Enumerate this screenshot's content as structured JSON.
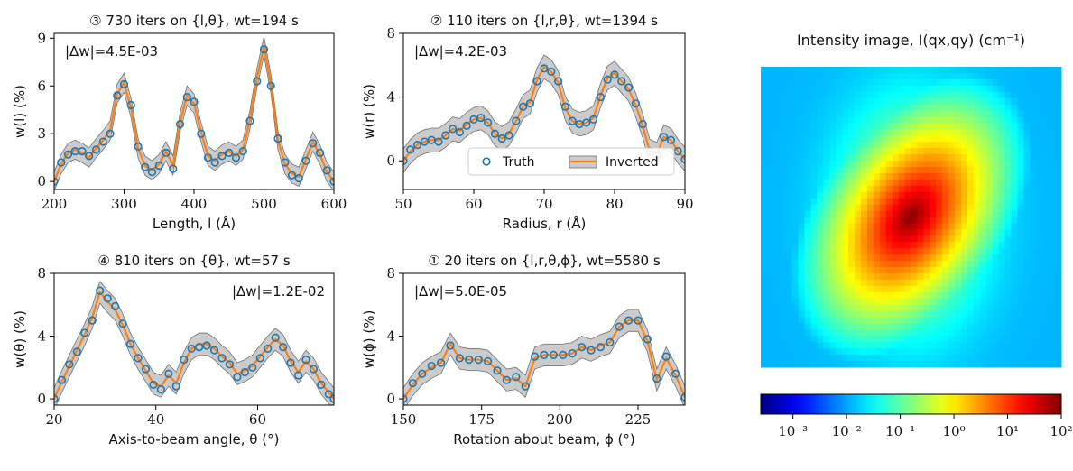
{
  "chart_data": [
    {
      "id": "length",
      "type": "line",
      "title": "③ 730 iters on {l,θ}, wt=194 s",
      "xlabel": "Length, l (Å)",
      "ylabel": "w(l) (%)",
      "xlim": [
        200,
        600
      ],
      "ylim": [
        -0.5,
        9.3
      ],
      "xticks": [
        200,
        300,
        400,
        500,
        600
      ],
      "yticks": [
        0,
        3,
        6,
        9
      ],
      "annotation": "|Δw|=4.5E-03",
      "annotation_pos": "top-left",
      "legend": null,
      "grid": false,
      "series": [
        {
          "name": "Truth",
          "style": "open-circle",
          "color": "#1f77b4",
          "x": [
            200,
            210,
            220,
            230,
            240,
            250,
            260,
            270,
            280,
            290,
            300,
            310,
            320,
            330,
            340,
            350,
            360,
            370,
            380,
            390,
            400,
            410,
            420,
            430,
            440,
            450,
            460,
            470,
            480,
            490,
            500,
            510,
            520,
            530,
            540,
            550,
            560,
            570,
            580,
            590,
            600
          ],
          "y": [
            0,
            1.2,
            1.7,
            1.9,
            1.9,
            1.6,
            2.0,
            2.5,
            3.0,
            5.4,
            6.1,
            4.8,
            2.2,
            0.9,
            0.6,
            1.0,
            1.8,
            0.8,
            3.6,
            5.3,
            5.0,
            3.0,
            1.5,
            1.2,
            1.6,
            1.8,
            1.5,
            1.9,
            3.8,
            6.3,
            8.3,
            6.0,
            2.7,
            1.2,
            0.4,
            0.2,
            1.3,
            2.4,
            1.8,
            0.7,
            0
          ]
        },
        {
          "name": "Inverted",
          "style": "line-band",
          "color": "#ff7f0e",
          "band_color": "#a0a0a0",
          "x": [
            200,
            210,
            220,
            230,
            240,
            250,
            260,
            270,
            280,
            290,
            300,
            310,
            320,
            330,
            340,
            350,
            360,
            370,
            380,
            390,
            400,
            410,
            420,
            430,
            440,
            450,
            460,
            470,
            480,
            490,
            500,
            510,
            520,
            530,
            540,
            550,
            560,
            570,
            580,
            590,
            600
          ],
          "y": [
            0,
            1.1,
            1.8,
            2.0,
            1.8,
            1.5,
            2.1,
            2.6,
            3.2,
            5.5,
            6.2,
            4.6,
            2.1,
            1.0,
            0.7,
            1.1,
            1.9,
            1.0,
            3.7,
            5.4,
            4.9,
            3.1,
            1.6,
            1.3,
            1.7,
            1.9,
            1.6,
            2.0,
            3.9,
            6.5,
            8.5,
            6.1,
            2.6,
            1.1,
            0.5,
            0.3,
            1.4,
            2.5,
            1.7,
            0.6,
            0
          ],
          "band": 0.6
        }
      ]
    },
    {
      "id": "radius",
      "type": "line",
      "title": "② 110 iters on {l,r,θ}, wt=1394 s",
      "xlabel": "Radius, r (Å)",
      "ylabel": "w(r) (%)",
      "xlim": [
        50,
        90
      ],
      "ylim": [
        -1.8,
        8
      ],
      "xticks": [
        50,
        60,
        70,
        80,
        90
      ],
      "yticks": [
        0,
        4,
        8
      ],
      "annotation": "|Δw|=4.2E-03",
      "annotation_pos": "top-left",
      "legend": {
        "position": "lower-center",
        "entries": [
          "Truth",
          "Inverted"
        ]
      },
      "grid": false,
      "series": [
        {
          "name": "Truth",
          "style": "open-circle",
          "color": "#1f77b4",
          "x": [
            50,
            51,
            52,
            53,
            54,
            55,
            56,
            57,
            58,
            59,
            60,
            61,
            62,
            63,
            64,
            65,
            66,
            67,
            68,
            69,
            70,
            71,
            72,
            73,
            74,
            75,
            76,
            77,
            78,
            79,
            80,
            81,
            82,
            83,
            84,
            85,
            86,
            87,
            88,
            89,
            90
          ],
          "y": [
            0,
            0.7,
            1.0,
            1.2,
            1.3,
            1.2,
            1.6,
            2.0,
            1.8,
            2.2,
            2.6,
            2.7,
            2.4,
            1.7,
            1.4,
            1.6,
            2.5,
            3.4,
            3.6,
            5.0,
            5.8,
            5.6,
            5.0,
            3.4,
            2.5,
            2.3,
            2.4,
            2.6,
            4.0,
            5.1,
            5.4,
            5.0,
            4.6,
            3.6,
            2.3,
            0.6,
            0.4,
            1.5,
            1.3,
            0.6,
            0.1
          ]
        },
        {
          "name": "Inverted",
          "style": "line-band",
          "color": "#ff7f0e",
          "band_color": "#a0a0a0",
          "x": [
            50,
            51,
            52,
            53,
            54,
            55,
            56,
            57,
            58,
            59,
            60,
            61,
            62,
            63,
            64,
            65,
            66,
            67,
            68,
            69,
            70,
            71,
            72,
            73,
            74,
            75,
            76,
            77,
            78,
            79,
            80,
            81,
            82,
            83,
            84,
            85,
            86,
            87,
            88,
            89,
            90
          ],
          "y": [
            0,
            0.6,
            1.0,
            1.2,
            1.3,
            1.3,
            1.6,
            2.0,
            1.9,
            2.3,
            2.6,
            2.7,
            2.4,
            1.7,
            1.4,
            1.7,
            2.5,
            3.4,
            3.7,
            5.1,
            5.9,
            5.6,
            4.9,
            3.3,
            2.5,
            2.3,
            2.4,
            2.7,
            4.1,
            5.2,
            5.5,
            5.0,
            4.5,
            3.5,
            2.2,
            0.6,
            0.4,
            1.5,
            1.3,
            0.6,
            0.1
          ],
          "band": 0.75
        }
      ]
    },
    {
      "id": "theta",
      "type": "line",
      "title": "④ 810 iters on {θ}, wt=57 s",
      "xlabel": "Axis-to-beam angle, θ (°)",
      "ylabel": "w(θ) (%)",
      "xlim": [
        20,
        75
      ],
      "ylim": [
        -0.4,
        8
      ],
      "xticks": [
        20,
        40,
        60
      ],
      "yticks": [
        0,
        4,
        8
      ],
      "annotation": "|Δw|=1.2E-02",
      "annotation_pos": "top-right",
      "legend": null,
      "grid": false,
      "series": [
        {
          "name": "Truth",
          "style": "open-circle",
          "color": "#1f77b4",
          "x": [
            20,
            21.5,
            23,
            24.5,
            26,
            27.5,
            29,
            30.5,
            32,
            33.5,
            35,
            36.5,
            38,
            39.5,
            41,
            42.5,
            44,
            45.5,
            47,
            48.5,
            50,
            51.5,
            53,
            54.5,
            56,
            57.5,
            59,
            60.5,
            62,
            63.5,
            65,
            66.5,
            68,
            69.5,
            71,
            72.5,
            74,
            75
          ],
          "y": [
            0,
            1.2,
            2.2,
            3.0,
            4.2,
            5.0,
            6.9,
            6.4,
            5.9,
            4.8,
            3.5,
            2.6,
            1.9,
            0.9,
            0.6,
            1.6,
            0.8,
            2.5,
            3.2,
            3.3,
            3.4,
            3.1,
            2.6,
            2.2,
            1.4,
            1.7,
            2.0,
            2.6,
            3.2,
            3.9,
            3.3,
            2.3,
            1.5,
            2.5,
            1.9,
            0.9,
            0.3,
            0
          ]
        },
        {
          "name": "Inverted",
          "style": "line-band",
          "color": "#ff7f0e",
          "band_color": "#a0a0a0",
          "x": [
            20,
            21.5,
            23,
            24.5,
            26,
            27.5,
            29,
            30.5,
            32,
            33.5,
            35,
            36.5,
            38,
            39.5,
            41,
            42.5,
            44,
            45.5,
            47,
            48.5,
            50,
            51.5,
            53,
            54.5,
            56,
            57.5,
            59,
            60.5,
            62,
            63.5,
            65,
            66.5,
            68,
            69.5,
            71,
            72.5,
            74,
            75
          ],
          "y": [
            0,
            1.1,
            2.1,
            3.1,
            4.1,
            5.2,
            6.8,
            6.2,
            5.7,
            4.7,
            3.5,
            2.6,
            1.8,
            1.0,
            0.8,
            1.5,
            1.0,
            2.3,
            3.2,
            3.5,
            3.5,
            3.2,
            2.7,
            2.3,
            1.6,
            1.8,
            2.1,
            2.7,
            3.3,
            3.8,
            3.4,
            2.4,
            1.7,
            2.4,
            1.9,
            1.0,
            0.4,
            0
          ],
          "band": 0.7
        }
      ]
    },
    {
      "id": "phi",
      "type": "line",
      "title": "① 20 iters on {l,r,θ,ϕ}, wt=5580 s",
      "xlabel": "Rotation about beam, ϕ (°)",
      "ylabel": "w(ϕ) (%)",
      "xlim": [
        150,
        240
      ],
      "ylim": [
        -0.4,
        8
      ],
      "xticks": [
        150,
        175,
        200,
        225
      ],
      "yticks": [
        0,
        4,
        8
      ],
      "annotation": "|Δw|=5.0E-05",
      "annotation_pos": "top-left",
      "legend": null,
      "grid": false,
      "series": [
        {
          "name": "Truth",
          "style": "open-circle",
          "color": "#1f77b4",
          "x": [
            150,
            153,
            156,
            159,
            162,
            165,
            168,
            171,
            174,
            177,
            180,
            183,
            186,
            189,
            192,
            195,
            198,
            201,
            204,
            207,
            210,
            213,
            216,
            219,
            222,
            225,
            228,
            231,
            234,
            237,
            240
          ],
          "y": [
            0,
            1.0,
            1.6,
            2.1,
            2.3,
            3.4,
            2.6,
            2.5,
            2.5,
            2.4,
            1.8,
            1.2,
            1.4,
            0.8,
            2.7,
            2.8,
            2.8,
            2.8,
            2.9,
            3.3,
            3.1,
            3.3,
            3.6,
            4.6,
            5.0,
            5.0,
            3.8,
            1.3,
            2.7,
            1.6,
            0.1
          ]
        },
        {
          "name": "Inverted",
          "style": "line-band",
          "color": "#ff7f0e",
          "band_color": "#a0a0a0",
          "x": [
            150,
            153,
            156,
            159,
            162,
            165,
            168,
            171,
            174,
            177,
            180,
            183,
            186,
            189,
            192,
            195,
            198,
            201,
            204,
            207,
            210,
            213,
            216,
            219,
            222,
            225,
            228,
            231,
            234,
            237,
            240
          ],
          "y": [
            0,
            0.9,
            1.6,
            2.0,
            2.3,
            3.5,
            2.6,
            2.5,
            2.5,
            2.4,
            1.8,
            1.2,
            1.3,
            0.8,
            2.6,
            2.8,
            2.8,
            2.8,
            2.9,
            3.3,
            3.1,
            3.4,
            3.6,
            4.6,
            5.0,
            5.0,
            3.7,
            1.2,
            2.6,
            1.5,
            0.1
          ],
          "band": 0.7
        }
      ]
    },
    {
      "id": "intensity",
      "type": "heatmap",
      "title": "Intensity image, I(qx,qy) (cm⁻¹)",
      "colorscale": "jet",
      "log_scale": true,
      "colorbar_ticks": [
        "10⁻³",
        "10⁻²",
        "10⁻¹",
        "10⁰",
        "10¹",
        "10²"
      ],
      "colorbar_range_log10": [
        -3.6,
        2
      ],
      "colorbar_position": "bottom"
    }
  ]
}
